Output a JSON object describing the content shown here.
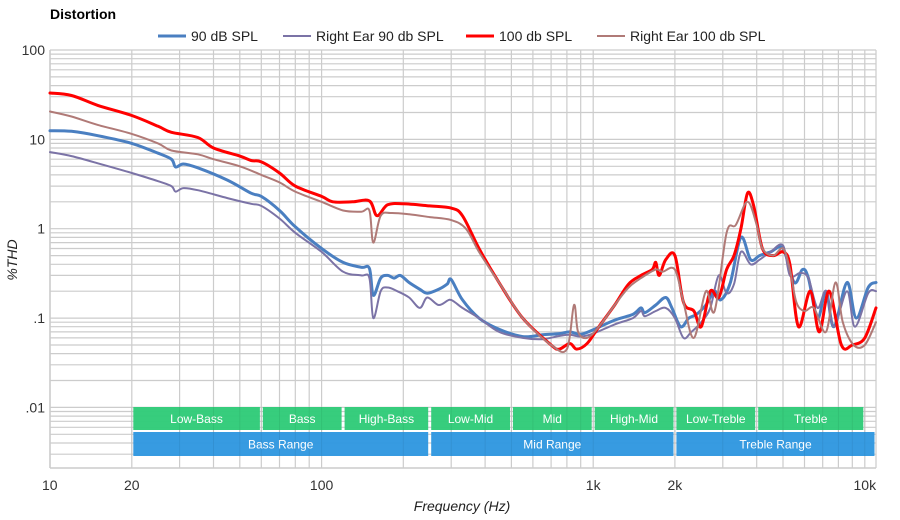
{
  "chart_data": {
    "type": "line",
    "title": "Distortion",
    "xlabel": "Frequency (Hz)",
    "ylabel": "%THD",
    "xscale": "log",
    "yscale": "log",
    "xlim": [
      10,
      11000
    ],
    "ylim": [
      0.0021,
      100
    ],
    "grid": true,
    "legend_position": "top-center",
    "x_ticks": [
      {
        "value": 10,
        "label": "10"
      },
      {
        "value": 20,
        "label": "20"
      },
      {
        "value": 100,
        "label": "100"
      },
      {
        "value": 1000,
        "label": "1k"
      },
      {
        "value": 2000,
        "label": "2k"
      },
      {
        "value": 10000,
        "label": "10k"
      }
    ],
    "y_ticks": [
      {
        "value": 100,
        "label": "100"
      },
      {
        "value": 10,
        "label": "10"
      },
      {
        "value": 1,
        "label": "1"
      },
      {
        "value": 0.1,
        "label": ".1"
      },
      {
        "value": 0.01,
        "label": ".01"
      }
    ],
    "series": [
      {
        "name": "90 dB SPL",
        "color": "#4a7fc1",
        "width": 3,
        "points": [
          [
            10,
            12.5
          ],
          [
            12,
            12.3
          ],
          [
            15,
            11
          ],
          [
            20,
            9
          ],
          [
            25,
            7
          ],
          [
            28,
            6
          ],
          [
            29,
            4.9
          ],
          [
            31,
            5.3
          ],
          [
            35,
            4.8
          ],
          [
            45,
            3.5
          ],
          [
            55,
            2.5
          ],
          [
            60,
            2.3
          ],
          [
            70,
            1.6
          ],
          [
            80,
            1.05
          ],
          [
            100,
            0.6
          ],
          [
            120,
            0.42
          ],
          [
            140,
            0.37
          ],
          [
            150,
            0.36
          ],
          [
            155,
            0.18
          ],
          [
            165,
            0.28
          ],
          [
            175,
            0.3
          ],
          [
            185,
            0.28
          ],
          [
            195,
            0.3
          ],
          [
            210,
            0.25
          ],
          [
            230,
            0.21
          ],
          [
            245,
            0.19
          ],
          [
            270,
            0.21
          ],
          [
            290,
            0.24
          ],
          [
            300,
            0.27
          ],
          [
            330,
            0.16
          ],
          [
            380,
            0.1
          ],
          [
            450,
            0.075
          ],
          [
            550,
            0.062
          ],
          [
            650,
            0.065
          ],
          [
            750,
            0.067
          ],
          [
            820,
            0.07
          ],
          [
            900,
            0.066
          ],
          [
            1000,
            0.074
          ],
          [
            1200,
            0.095
          ],
          [
            1400,
            0.11
          ],
          [
            1500,
            0.13
          ],
          [
            1550,
            0.115
          ],
          [
            1700,
            0.14
          ],
          [
            1850,
            0.17
          ],
          [
            1950,
            0.13
          ],
          [
            2100,
            0.08
          ],
          [
            2250,
            0.1
          ],
          [
            2400,
            0.11
          ],
          [
            2600,
            0.14
          ],
          [
            2800,
            0.2
          ],
          [
            2950,
            0.16
          ],
          [
            3200,
            0.25
          ],
          [
            3500,
            0.8
          ],
          [
            3800,
            0.45
          ],
          [
            4100,
            0.5
          ],
          [
            4500,
            0.55
          ],
          [
            5000,
            0.6
          ],
          [
            5500,
            0.25
          ],
          [
            5900,
            0.35
          ],
          [
            6200,
            0.28
          ],
          [
            6700,
            0.1
          ],
          [
            7200,
            0.2
          ],
          [
            7700,
            0.08
          ],
          [
            8600,
            0.25
          ],
          [
            9300,
            0.1
          ],
          [
            10300,
            0.22
          ],
          [
            11000,
            0.25
          ]
        ]
      },
      {
        "name": "Right Ear 90 db SPL",
        "color": "#7b73a6",
        "width": 2,
        "points": [
          [
            10,
            7.2
          ],
          [
            12,
            6.5
          ],
          [
            15,
            5.4
          ],
          [
            20,
            4.2
          ],
          [
            25,
            3.4
          ],
          [
            28,
            3
          ],
          [
            29,
            2.6
          ],
          [
            31,
            2.85
          ],
          [
            35,
            2.7
          ],
          [
            45,
            2.2
          ],
          [
            55,
            1.9
          ],
          [
            60,
            1.8
          ],
          [
            70,
            1.3
          ],
          [
            80,
            0.9
          ],
          [
            100,
            0.55
          ],
          [
            120,
            0.33
          ],
          [
            140,
            0.3
          ],
          [
            150,
            0.28
          ],
          [
            155,
            0.1
          ],
          [
            165,
            0.2
          ],
          [
            175,
            0.22
          ],
          [
            190,
            0.2
          ],
          [
            210,
            0.17
          ],
          [
            230,
            0.13
          ],
          [
            245,
            0.17
          ],
          [
            270,
            0.14
          ],
          [
            295,
            0.16
          ],
          [
            310,
            0.15
          ],
          [
            330,
            0.13
          ],
          [
            380,
            0.1
          ],
          [
            450,
            0.07
          ],
          [
            550,
            0.06
          ],
          [
            650,
            0.058
          ],
          [
            750,
            0.063
          ],
          [
            820,
            0.065
          ],
          [
            900,
            0.062
          ],
          [
            1000,
            0.067
          ],
          [
            1200,
            0.085
          ],
          [
            1400,
            0.1
          ],
          [
            1500,
            0.12
          ],
          [
            1550,
            0.105
          ],
          [
            1700,
            0.12
          ],
          [
            1850,
            0.13
          ],
          [
            2000,
            0.1
          ],
          [
            2150,
            0.06
          ],
          [
            2300,
            0.07
          ],
          [
            2500,
            0.09
          ],
          [
            2700,
            0.13
          ],
          [
            2900,
            0.3
          ],
          [
            3100,
            0.19
          ],
          [
            3300,
            0.24
          ],
          [
            3500,
            0.55
          ],
          [
            3800,
            0.4
          ],
          [
            4100,
            0.45
          ],
          [
            4500,
            0.55
          ],
          [
            5000,
            0.65
          ],
          [
            5300,
            0.3
          ],
          [
            5800,
            0.32
          ],
          [
            6200,
            0.28
          ],
          [
            6700,
            0.13
          ],
          [
            7200,
            0.2
          ],
          [
            7700,
            0.08
          ],
          [
            8600,
            0.2
          ],
          [
            9200,
            0.08
          ],
          [
            10300,
            0.19
          ],
          [
            11000,
            0.2
          ]
        ]
      },
      {
        "name": "100 db SPL",
        "color": "#ff0000",
        "width": 3,
        "points": [
          [
            10,
            33
          ],
          [
            12,
            31
          ],
          [
            15,
            24
          ],
          [
            20,
            18.5
          ],
          [
            25,
            14
          ],
          [
            28,
            12
          ],
          [
            35,
            10.5
          ],
          [
            40,
            8
          ],
          [
            50,
            6.5
          ],
          [
            55,
            5.8
          ],
          [
            60,
            5.6
          ],
          [
            70,
            4.2
          ],
          [
            80,
            3
          ],
          [
            100,
            2.3
          ],
          [
            110,
            2
          ],
          [
            130,
            2
          ],
          [
            150,
            2.05
          ],
          [
            160,
            1.4
          ],
          [
            175,
            1.85
          ],
          [
            200,
            1.9
          ],
          [
            250,
            1.8
          ],
          [
            300,
            1.7
          ],
          [
            330,
            1.4
          ],
          [
            380,
            0.6
          ],
          [
            450,
            0.25
          ],
          [
            550,
            0.1
          ],
          [
            700,
            0.05
          ],
          [
            750,
            0.045
          ],
          [
            820,
            0.052
          ],
          [
            870,
            0.045
          ],
          [
            950,
            0.052
          ],
          [
            1050,
            0.08
          ],
          [
            1200,
            0.14
          ],
          [
            1350,
            0.24
          ],
          [
            1500,
            0.3
          ],
          [
            1650,
            0.35
          ],
          [
            1700,
            0.42
          ],
          [
            1750,
            0.3
          ],
          [
            1850,
            0.45
          ],
          [
            2000,
            0.5
          ],
          [
            2150,
            0.15
          ],
          [
            2350,
            0.12
          ],
          [
            2500,
            0.08
          ],
          [
            2700,
            0.2
          ],
          [
            2900,
            0.17
          ],
          [
            3100,
            0.35
          ],
          [
            3300,
            0.5
          ],
          [
            3500,
            1
          ],
          [
            3700,
            2.5
          ],
          [
            3900,
            1.8
          ],
          [
            4200,
            0.6
          ],
          [
            4600,
            0.5
          ],
          [
            5000,
            0.55
          ],
          [
            5300,
            0.4
          ],
          [
            5700,
            0.08
          ],
          [
            6300,
            0.2
          ],
          [
            6800,
            0.07
          ],
          [
            7400,
            0.2
          ],
          [
            8200,
            0.05
          ],
          [
            9000,
            0.05
          ],
          [
            10000,
            0.06
          ],
          [
            11000,
            0.13
          ]
        ]
      },
      {
        "name": "Right Ear 100 db SPL",
        "color": "#b07a77",
        "width": 2,
        "points": [
          [
            10,
            20.5
          ],
          [
            12,
            18
          ],
          [
            15,
            14.5
          ],
          [
            20,
            11.5
          ],
          [
            25,
            9
          ],
          [
            28,
            7.5
          ],
          [
            35,
            6.8
          ],
          [
            40,
            6
          ],
          [
            50,
            5
          ],
          [
            60,
            4
          ],
          [
            70,
            3.3
          ],
          [
            80,
            2.6
          ],
          [
            100,
            2
          ],
          [
            120,
            1.6
          ],
          [
            140,
            1.55
          ],
          [
            150,
            1.6
          ],
          [
            155,
            0.7
          ],
          [
            165,
            1.4
          ],
          [
            180,
            1.5
          ],
          [
            210,
            1.45
          ],
          [
            250,
            1.35
          ],
          [
            300,
            1.25
          ],
          [
            340,
            1
          ],
          [
            380,
            0.55
          ],
          [
            450,
            0.25
          ],
          [
            550,
            0.1
          ],
          [
            700,
            0.05
          ],
          [
            800,
            0.045
          ],
          [
            850,
            0.14
          ],
          [
            880,
            0.07
          ],
          [
            950,
            0.06
          ],
          [
            1050,
            0.08
          ],
          [
            1200,
            0.14
          ],
          [
            1350,
            0.22
          ],
          [
            1500,
            0.28
          ],
          [
            1700,
            0.35
          ],
          [
            1800,
            0.33
          ],
          [
            2000,
            0.35
          ],
          [
            2150,
            0.15
          ],
          [
            2350,
            0.06
          ],
          [
            2600,
            0.2
          ],
          [
            2800,
            0.12
          ],
          [
            3100,
            0.9
          ],
          [
            3350,
            1.1
          ],
          [
            3700,
            2
          ],
          [
            4000,
            1.1
          ],
          [
            4200,
            0.6
          ],
          [
            4600,
            0.5
          ],
          [
            5000,
            0.6
          ],
          [
            5300,
            0.35
          ],
          [
            5600,
            0.15
          ],
          [
            6000,
            0.12
          ],
          [
            6500,
            0.13
          ],
          [
            7200,
            0.07
          ],
          [
            7800,
            0.25
          ],
          [
            8300,
            0.09
          ],
          [
            9100,
            0.05
          ],
          [
            10000,
            0.05
          ],
          [
            11000,
            0.09
          ]
        ]
      }
    ],
    "bands": [
      {
        "label": "Low-Bass",
        "from": 20,
        "to": 60,
        "row": "sub",
        "color": "#33cc7a"
      },
      {
        "label": "Bass",
        "from": 60,
        "to": 120,
        "row": "sub",
        "color": "#33cc7a"
      },
      {
        "label": "High-Bass",
        "from": 120,
        "to": 250,
        "row": "sub",
        "color": "#33cc7a"
      },
      {
        "label": "Low-Mid",
        "from": 250,
        "to": 500,
        "row": "sub",
        "color": "#33cc7a"
      },
      {
        "label": "Mid",
        "from": 500,
        "to": 1000,
        "row": "sub",
        "color": "#33cc7a"
      },
      {
        "label": "High-Mid",
        "from": 1000,
        "to": 2000,
        "row": "sub",
        "color": "#33cc7a"
      },
      {
        "label": "Low-Treble",
        "from": 2000,
        "to": 4000,
        "row": "sub",
        "color": "#33cc7a"
      },
      {
        "label": "Treble",
        "from": 4000,
        "to": 10000,
        "row": "sub",
        "color": "#33cc7a"
      },
      {
        "label": "Bass Range",
        "from": 20,
        "to": 250,
        "row": "main",
        "color": "#3399e0"
      },
      {
        "label": "Mid Range",
        "from": 250,
        "to": 2000,
        "row": "main",
        "color": "#3399e0"
      },
      {
        "label": "Treble Range",
        "from": 2000,
        "to": 11000,
        "row": "main",
        "color": "#3399e0"
      }
    ]
  }
}
